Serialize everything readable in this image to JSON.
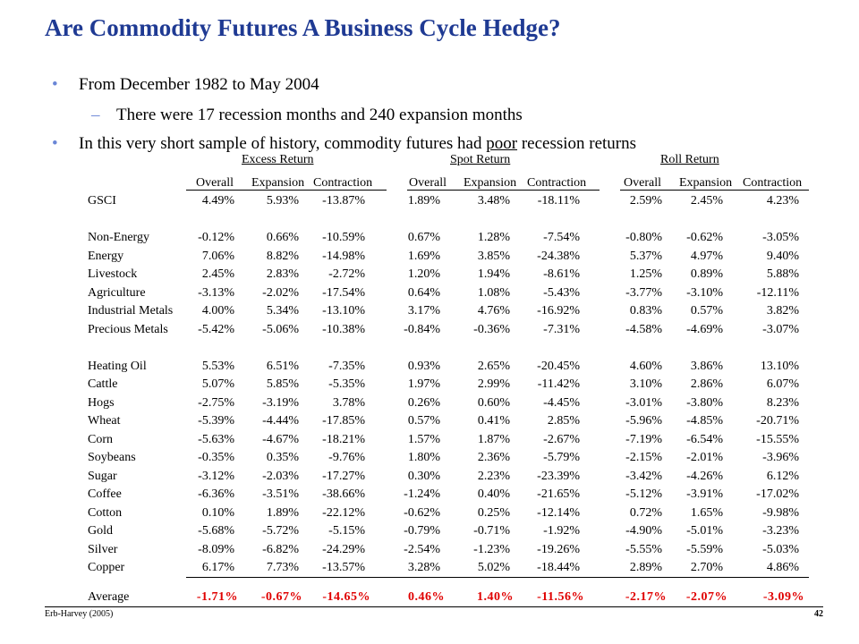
{
  "title": "Are Commodity Futures A Business Cycle Hedge?",
  "bullets": {
    "b1": "From December 1982 to May 2004",
    "b2": "There were 17 recession months and 240 expansion months",
    "b3_pre": "In this very short sample of history, commodity futures had ",
    "b3_u": "poor",
    "b3_post": " recession returns"
  },
  "groups": [
    "Excess Return",
    "Spot Return",
    "Roll Return"
  ],
  "subheaders": [
    "Overall",
    "Expansion",
    "Contraction"
  ],
  "rows": [
    {
      "label": "GSCI",
      "v": [
        "4.49%",
        "5.93%",
        "-13.87%",
        "1.89%",
        "3.48%",
        "-18.11%",
        "2.59%",
        "2.45%",
        "4.23%"
      ]
    },
    {
      "label": "Non-Energy",
      "v": [
        "-0.12%",
        "0.66%",
        "-10.59%",
        "0.67%",
        "1.28%",
        "-7.54%",
        "-0.80%",
        "-0.62%",
        "-3.05%"
      ]
    },
    {
      "label": "Energy",
      "v": [
        "7.06%",
        "8.82%",
        "-14.98%",
        "1.69%",
        "3.85%",
        "-24.38%",
        "5.37%",
        "4.97%",
        "9.40%"
      ]
    },
    {
      "label": "Livestock",
      "v": [
        "2.45%",
        "2.83%",
        "-2.72%",
        "1.20%",
        "1.94%",
        "-8.61%",
        "1.25%",
        "0.89%",
        "5.88%"
      ]
    },
    {
      "label": "Agriculture",
      "v": [
        "-3.13%",
        "-2.02%",
        "-17.54%",
        "0.64%",
        "1.08%",
        "-5.43%",
        "-3.77%",
        "-3.10%",
        "-12.11%"
      ]
    },
    {
      "label": "Industrial Metals",
      "v": [
        "4.00%",
        "5.34%",
        "-13.10%",
        "3.17%",
        "4.76%",
        "-16.92%",
        "0.83%",
        "0.57%",
        "3.82%"
      ]
    },
    {
      "label": "Precious Metals",
      "v": [
        "-5.42%",
        "-5.06%",
        "-10.38%",
        "-0.84%",
        "-0.36%",
        "-7.31%",
        "-4.58%",
        "-4.69%",
        "-3.07%"
      ]
    },
    {
      "label": "Heating Oil",
      "v": [
        "5.53%",
        "6.51%",
        "-7.35%",
        "0.93%",
        "2.65%",
        "-20.45%",
        "4.60%",
        "3.86%",
        "13.10%"
      ]
    },
    {
      "label": "Cattle",
      "v": [
        "5.07%",
        "5.85%",
        "-5.35%",
        "1.97%",
        "2.99%",
        "-11.42%",
        "3.10%",
        "2.86%",
        "6.07%"
      ]
    },
    {
      "label": "Hogs",
      "v": [
        "-2.75%",
        "-3.19%",
        "3.78%",
        "0.26%",
        "0.60%",
        "-4.45%",
        "-3.01%",
        "-3.80%",
        "8.23%"
      ]
    },
    {
      "label": "Wheat",
      "v": [
        "-5.39%",
        "-4.44%",
        "-17.85%",
        "0.57%",
        "0.41%",
        "2.85%",
        "-5.96%",
        "-4.85%",
        "-20.71%"
      ]
    },
    {
      "label": "Corn",
      "v": [
        "-5.63%",
        "-4.67%",
        "-18.21%",
        "1.57%",
        "1.87%",
        "-2.67%",
        "-7.19%",
        "-6.54%",
        "-15.55%"
      ]
    },
    {
      "label": "Soybeans",
      "v": [
        "-0.35%",
        "0.35%",
        "-9.76%",
        "1.80%",
        "2.36%",
        "-5.79%",
        "-2.15%",
        "-2.01%",
        "-3.96%"
      ]
    },
    {
      "label": "Sugar",
      "v": [
        "-3.12%",
        "-2.03%",
        "-17.27%",
        "0.30%",
        "2.23%",
        "-23.39%",
        "-3.42%",
        "-4.26%",
        "6.12%"
      ]
    },
    {
      "label": "Coffee",
      "v": [
        "-6.36%",
        "-3.51%",
        "-38.66%",
        "-1.24%",
        "0.40%",
        "-21.65%",
        "-5.12%",
        "-3.91%",
        "-17.02%"
      ]
    },
    {
      "label": "Cotton",
      "v": [
        "0.10%",
        "1.89%",
        "-22.12%",
        "-0.62%",
        "0.25%",
        "-12.14%",
        "0.72%",
        "1.65%",
        "-9.98%"
      ]
    },
    {
      "label": "Gold",
      "v": [
        "-5.68%",
        "-5.72%",
        "-5.15%",
        "-0.79%",
        "-0.71%",
        "-1.92%",
        "-4.90%",
        "-5.01%",
        "-3.23%"
      ]
    },
    {
      "label": "Silver",
      "v": [
        "-8.09%",
        "-6.82%",
        "-24.29%",
        "-2.54%",
        "-1.23%",
        "-19.26%",
        "-5.55%",
        "-5.59%",
        "-5.03%"
      ]
    },
    {
      "label": "Copper",
      "v": [
        "6.17%",
        "7.73%",
        "-13.57%",
        "3.28%",
        "5.02%",
        "-18.44%",
        "2.89%",
        "2.70%",
        "4.86%"
      ]
    }
  ],
  "average": {
    "label": "Average",
    "v": [
      "-1.71%",
      "-0.67%",
      "-14.65%",
      "0.46%",
      "1.40%",
      "-11.56%",
      "-2.17%",
      "-2.07%",
      "-3.09%"
    ]
  },
  "footer": {
    "left": "Erb-Harvey (2005)",
    "right": "42"
  },
  "colors": {
    "title": "#1f3a93",
    "bullet": "#6a86d6",
    "average": "#e00000"
  }
}
